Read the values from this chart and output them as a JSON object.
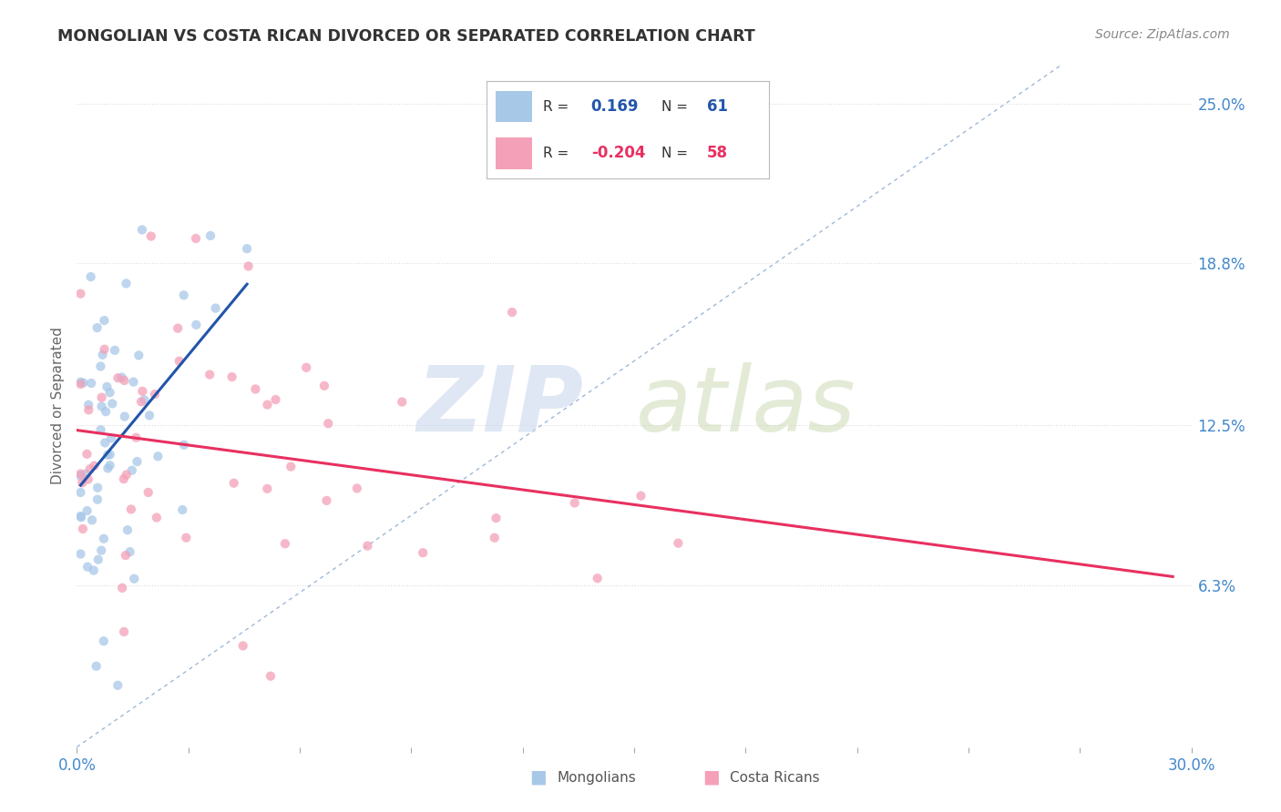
{
  "title": "MONGOLIAN VS COSTA RICAN DIVORCED OR SEPARATED CORRELATION CHART",
  "source": "Source: ZipAtlas.com",
  "ylabel": "Divorced or Separated",
  "xlim": [
    0.0,
    0.3
  ],
  "ylim": [
    0.0,
    0.265
  ],
  "mongolian_R": 0.169,
  "mongolian_N": 61,
  "costa_rican_R": -0.204,
  "costa_rican_N": 58,
  "mongolian_color": "#A8C8E8",
  "costa_rican_color": "#F4A0B8",
  "mongolian_line_color": "#2255AA",
  "costa_rican_line_color": "#E83060",
  "diagonal_line_color": "#A0B8D8",
  "background_color": "#ffffff",
  "grid_color": "#DCDCDC",
  "title_color": "#333333",
  "right_label_color": "#4488CC",
  "axis_label_color": "#4488CC",
  "y_ticks": [
    0.063,
    0.125,
    0.188,
    0.25
  ],
  "y_tick_labels": [
    "6.3%",
    "12.5%",
    "18.8%",
    "25.0%"
  ],
  "legend_text_color": "#333333",
  "legend_r_color_mong": "#2255AA",
  "legend_r_color_cr": "#E83060"
}
